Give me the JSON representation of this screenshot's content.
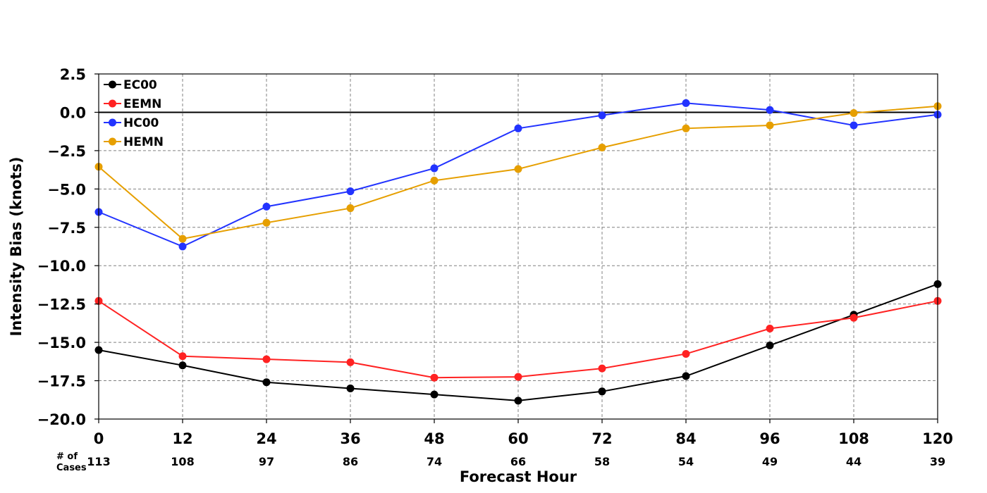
{
  "chart_data": {
    "type": "line",
    "title": "",
    "xlabel": "Forecast Hour",
    "ylabel": "Intensity Bias (knots)",
    "x": [
      0,
      12,
      24,
      36,
      48,
      60,
      72,
      84,
      96,
      108,
      120
    ],
    "xticks": [
      "0",
      "12",
      "24",
      "36",
      "48",
      "60",
      "72",
      "84",
      "96",
      "108",
      "120"
    ],
    "yticks": [
      "2.5",
      "0.0",
      "−2.5",
      "−5.0",
      "−7.5",
      "−10.0",
      "−12.5",
      "−15.0",
      "−17.5",
      "−20.0"
    ],
    "ytick_values": [
      2.5,
      0,
      -2.5,
      -5,
      -7.5,
      -10,
      -12.5,
      -15,
      -17.5,
      -20
    ],
    "xlim": [
      0,
      120
    ],
    "ylim": [
      -20,
      2.5
    ],
    "grid": true,
    "zero_line": true,
    "legend_position": "top-left",
    "cases_label": "# of\nCases",
    "cases": [
      "113",
      "108",
      "97",
      "86",
      "74",
      "66",
      "58",
      "54",
      "49",
      "44",
      "39"
    ],
    "series": [
      {
        "name": "EC00",
        "color": "#000000",
        "values": [
          -15.5,
          -16.5,
          -17.6,
          -18.0,
          -18.4,
          -18.8,
          -18.2,
          -17.2,
          -15.2,
          -13.2,
          -11.2
        ]
      },
      {
        "name": "EEMN",
        "color": "#ff2222",
        "values": [
          -12.3,
          -15.9,
          -16.1,
          -16.3,
          -17.3,
          -17.25,
          -16.7,
          -15.75,
          -14.1,
          -13.4,
          -12.3
        ]
      },
      {
        "name": "HC00",
        "color": "#2233ff",
        "values": [
          -6.5,
          -8.75,
          -6.15,
          -5.15,
          -3.65,
          -1.05,
          -0.2,
          0.6,
          0.15,
          -0.85,
          -0.15
        ]
      },
      {
        "name": "HEMN",
        "color": "#e69f00",
        "values": [
          -3.55,
          -8.25,
          -7.2,
          -6.25,
          -4.45,
          -3.7,
          -2.3,
          -1.05,
          -0.85,
          -0.05,
          0.4
        ]
      }
    ]
  }
}
